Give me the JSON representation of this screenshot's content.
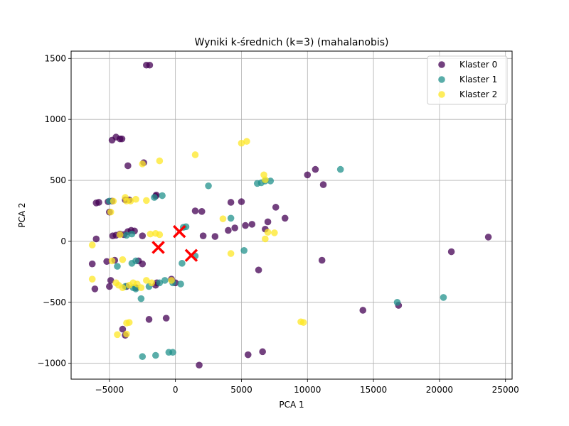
{
  "chart_data": {
    "type": "scatter",
    "title": "Wyniki k-średnich (k=3) (mahalanobis)",
    "xlabel": "PCA 1",
    "ylabel": "PCA 2",
    "xlim": [
      -7900,
      25500
    ],
    "ylim": [
      -1130,
      1560
    ],
    "xticks": [
      -5000,
      0,
      5000,
      10000,
      15000,
      20000,
      25000
    ],
    "yticks": [
      -1000,
      -500,
      0,
      500,
      1000,
      1500
    ],
    "grid": true,
    "legend_position": "top-right",
    "series": [
      {
        "name": "Klaster 0",
        "color": "#440154",
        "points": [
          [
            -2200,
            1445
          ],
          [
            -1950,
            1445
          ],
          [
            -4800,
            830
          ],
          [
            -4500,
            855
          ],
          [
            -4200,
            840
          ],
          [
            -4050,
            840
          ],
          [
            -3600,
            620
          ],
          [
            -2400,
            645
          ],
          [
            -6000,
            315
          ],
          [
            -5800,
            320
          ],
          [
            -5100,
            325
          ],
          [
            -4800,
            330
          ],
          [
            -3800,
            340
          ],
          [
            -3500,
            340
          ],
          [
            -1500,
            370
          ],
          [
            -1450,
            380
          ],
          [
            -5000,
            240
          ],
          [
            -6000,
            20
          ],
          [
            -4750,
            45
          ],
          [
            -4500,
            50
          ],
          [
            -4200,
            60
          ],
          [
            -3900,
            55
          ],
          [
            -3600,
            80
          ],
          [
            -3350,
            90
          ],
          [
            -3100,
            85
          ],
          [
            -2500,
            45
          ],
          [
            1500,
            250
          ],
          [
            2000,
            245
          ],
          [
            2100,
            45
          ],
          [
            3000,
            40
          ],
          [
            4200,
            320
          ],
          [
            5000,
            325
          ],
          [
            7000,
            160
          ],
          [
            7600,
            280
          ],
          [
            8300,
            190
          ],
          [
            4000,
            90
          ],
          [
            4500,
            110
          ],
          [
            5300,
            130
          ],
          [
            5800,
            140
          ],
          [
            6800,
            100
          ],
          [
            10000,
            545
          ],
          [
            10600,
            590
          ],
          [
            11200,
            465
          ],
          [
            23700,
            35
          ],
          [
            20900,
            -85
          ],
          [
            11100,
            -155
          ],
          [
            -5200,
            -165
          ],
          [
            -6300,
            -185
          ],
          [
            -4600,
            -155
          ],
          [
            -2800,
            -160
          ],
          [
            -2500,
            -185
          ],
          [
            -4900,
            -320
          ],
          [
            -5000,
            -370
          ],
          [
            -6100,
            -390
          ],
          [
            -3700,
            -370
          ],
          [
            -3000,
            -380
          ],
          [
            -1500,
            -360
          ],
          [
            -1400,
            -340
          ],
          [
            -300,
            -310
          ],
          [
            0,
            -340
          ],
          [
            6300,
            -235
          ],
          [
            14200,
            -565
          ],
          [
            16900,
            -525
          ],
          [
            -4000,
            -720
          ],
          [
            -3800,
            -770
          ],
          [
            -2000,
            -640
          ],
          [
            -700,
            -630
          ],
          [
            5500,
            -930
          ],
          [
            6600,
            -905
          ],
          [
            1800,
            -1015
          ]
        ]
      },
      {
        "name": "Klaster 1",
        "color": "#21918c",
        "points": [
          [
            -5000,
            330
          ],
          [
            -1000,
            375
          ],
          [
            -1600,
            360
          ],
          [
            2500,
            455
          ],
          [
            6200,
            475
          ],
          [
            6500,
            480
          ],
          [
            6800,
            495
          ],
          [
            7200,
            495
          ],
          [
            12500,
            590
          ],
          [
            4200,
            190
          ],
          [
            600,
            115
          ],
          [
            800,
            120
          ],
          [
            -3300,
            60
          ],
          [
            -3700,
            50
          ],
          [
            -4400,
            -205
          ],
          [
            -3300,
            -180
          ],
          [
            -3000,
            -160
          ],
          [
            -3800,
            -370
          ],
          [
            -3200,
            -380
          ],
          [
            -3000,
            -390
          ],
          [
            -2600,
            -470
          ],
          [
            -2000,
            -370
          ],
          [
            -1200,
            -340
          ],
          [
            -800,
            -320
          ],
          [
            -200,
            -340
          ],
          [
            400,
            -350
          ],
          [
            500,
            -180
          ],
          [
            1500,
            -120
          ],
          [
            5200,
            -75
          ],
          [
            -2500,
            -945
          ],
          [
            -1500,
            -935
          ],
          [
            -500,
            -910
          ],
          [
            -200,
            -910
          ],
          [
            16800,
            -500
          ],
          [
            20300,
            -460
          ]
        ]
      },
      {
        "name": "Klaster 2",
        "color": "#fde725",
        "points": [
          [
            5000,
            805
          ],
          [
            5400,
            820
          ],
          [
            1500,
            710
          ],
          [
            -2500,
            635
          ],
          [
            -1200,
            660
          ],
          [
            6700,
            545
          ],
          [
            6800,
            505
          ],
          [
            -4900,
            240
          ],
          [
            -4700,
            330
          ],
          [
            -3800,
            360
          ],
          [
            -3700,
            330
          ],
          [
            -3400,
            330
          ],
          [
            -3000,
            345
          ],
          [
            -2200,
            335
          ],
          [
            3600,
            185
          ],
          [
            -4200,
            55
          ],
          [
            -1900,
            60
          ],
          [
            -1500,
            65
          ],
          [
            -1200,
            55
          ],
          [
            7000,
            75
          ],
          [
            7500,
            70
          ],
          [
            6800,
            20
          ],
          [
            -6300,
            -30
          ],
          [
            -4800,
            -160
          ],
          [
            -4000,
            -150
          ],
          [
            4200,
            -100
          ],
          [
            -6300,
            -310
          ],
          [
            -4500,
            -340
          ],
          [
            -4300,
            -360
          ],
          [
            -4000,
            -380
          ],
          [
            -3500,
            -360
          ],
          [
            -3200,
            -340
          ],
          [
            -2900,
            -350
          ],
          [
            -2600,
            -380
          ],
          [
            -2200,
            -320
          ],
          [
            -1800,
            -340
          ],
          [
            -300,
            -320
          ],
          [
            -3700,
            -670
          ],
          [
            -3500,
            -665
          ],
          [
            -4400,
            -765
          ],
          [
            -3700,
            -760
          ],
          [
            9500,
            -660
          ],
          [
            9700,
            -665
          ]
        ]
      }
    ],
    "centroids": {
      "color": "#ff0000",
      "marker": "x",
      "points": [
        [
          -1300,
          -50
        ],
        [
          300,
          80
        ],
        [
          1200,
          -115
        ]
      ]
    },
    "legend": [
      {
        "label": "Klaster 0",
        "color": "#440154"
      },
      {
        "label": "Klaster 1",
        "color": "#21918c"
      },
      {
        "label": "Klaster 2",
        "color": "#fde725"
      }
    ]
  }
}
